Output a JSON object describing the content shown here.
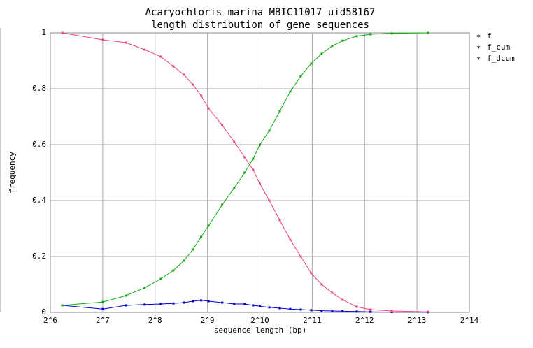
{
  "chart_data": {
    "type": "line",
    "title": "Acaryochloris marina MBIC11017 uid58167",
    "subtitle": "length distribution of gene sequences",
    "xlabel": "sequence length (bp)",
    "ylabel": "frequency",
    "xscale": "log2",
    "grid": true,
    "legend": "top-right",
    "xlim": [
      64,
      16384
    ],
    "xticks": [
      {
        "value": 64,
        "label": "2^6"
      },
      {
        "value": 128,
        "label": "2^7"
      },
      {
        "value": 256,
        "label": "2^8"
      },
      {
        "value": 512,
        "label": "2^9"
      },
      {
        "value": 1024,
        "label": "2^10"
      },
      {
        "value": 2048,
        "label": "2^11"
      },
      {
        "value": 4096,
        "label": "2^12"
      },
      {
        "value": 8192,
        "label": "2^13"
      },
      {
        "value": 16384,
        "label": "2^14"
      }
    ],
    "ylim": [
      0,
      1
    ],
    "yticks": [
      0,
      0.2,
      0.4,
      0.6,
      0.8,
      1
    ],
    "x": [
      75,
      128,
      174,
      223,
      276,
      326,
      375,
      422,
      471,
      519,
      622,
      729,
      838,
      936,
      1024,
      1160,
      1333,
      1531,
      1759,
      2021,
      2320,
      2665,
      3060,
      3690,
      4430,
      5870,
      9480
    ],
    "series": [
      {
        "name": "f",
        "color": "#0000cc",
        "values": [
          0.025,
          0.012,
          0.025,
          0.028,
          0.03,
          0.032,
          0.035,
          0.04,
          0.043,
          0.04,
          0.035,
          0.03,
          0.03,
          0.025,
          0.022,
          0.018,
          0.015,
          0.012,
          0.01,
          0.008,
          0.006,
          0.005,
          0.004,
          0.003,
          0.002,
          0.001,
          0.0005
        ]
      },
      {
        "name": "f_cum",
        "color": "#11aa11",
        "values": [
          0.025,
          0.037,
          0.06,
          0.088,
          0.12,
          0.15,
          0.185,
          0.225,
          0.27,
          0.31,
          0.385,
          0.445,
          0.5,
          0.55,
          0.6,
          0.65,
          0.72,
          0.79,
          0.845,
          0.89,
          0.925,
          0.953,
          0.972,
          0.988,
          0.995,
          0.998,
          1.0
        ]
      },
      {
        "name": "f_dcum",
        "color": "#ee4477",
        "values": [
          1.0,
          0.975,
          0.965,
          0.94,
          0.915,
          0.88,
          0.85,
          0.815,
          0.775,
          0.73,
          0.67,
          0.61,
          0.555,
          0.51,
          0.46,
          0.4,
          0.33,
          0.26,
          0.2,
          0.14,
          0.1,
          0.07,
          0.045,
          0.02,
          0.01,
          0.005,
          0.002
        ]
      }
    ]
  }
}
